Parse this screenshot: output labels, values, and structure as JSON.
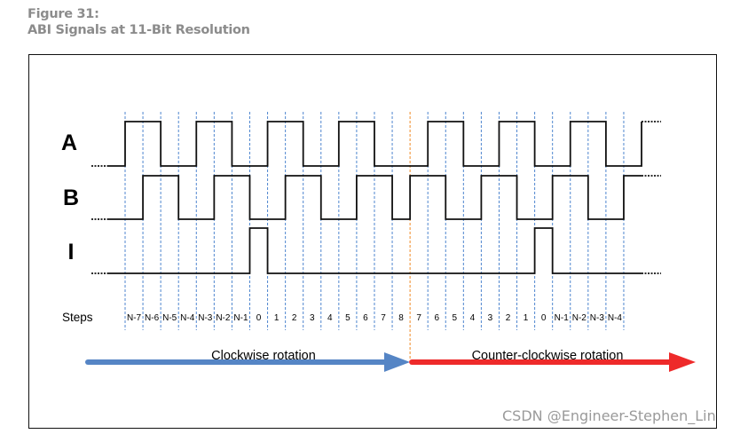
{
  "figure": {
    "number_label": "Figure 31:",
    "title": "ABI Signals at 11-Bit Resolution"
  },
  "diagram": {
    "signals": [
      {
        "name": "A",
        "levels": "1100110011001100011001100110",
        "extension": "0",
        "lead": "0",
        "tail": "1"
      },
      {
        "name": "B",
        "levels": "0110011001100110110011001100",
        "extension": "1",
        "lead": "0",
        "tail": "1"
      },
      {
        "name": "I",
        "levels": "0000000100000000000000010000",
        "extension": "0",
        "lead": "0",
        "tail": "0"
      }
    ],
    "steps_label": "Steps",
    "steps": [
      "N-7",
      "N-6",
      "N-5",
      "N-4",
      "N-3",
      "N-2",
      "N-1",
      "0",
      "1",
      "2",
      "3",
      "4",
      "5",
      "6",
      "7",
      "8",
      "7",
      "6",
      "5",
      "4",
      "3",
      "2",
      "1",
      "0",
      "N-1",
      "N-2",
      "N-3",
      "N-4"
    ],
    "direction_change_after_step": 16,
    "clockwise_label": "Clockwise rotation",
    "counter_clockwise_label": "Counter-clockwise rotation",
    "colors": {
      "clockwise": "#5585c5",
      "counter_clockwise": "#ee2a2a",
      "grid": "#4f86cf",
      "reversal": "#f08a24",
      "signal": "#111111"
    }
  },
  "watermark": "CSDN @Engineer-Stephen_Lin"
}
